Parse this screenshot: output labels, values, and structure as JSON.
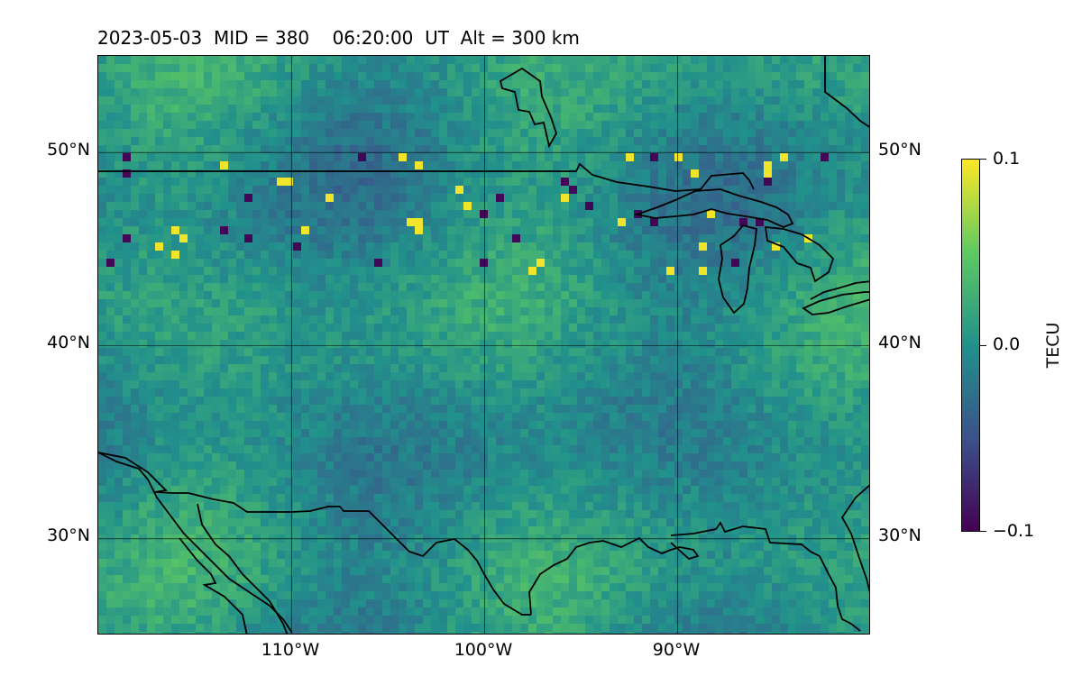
{
  "title": "2023-05-03  MID = 380    06:20:00  UT  Alt = 300 km",
  "map": {
    "projection": "plate-carree",
    "lon_range": [
      -120,
      -80
    ],
    "lat_range": [
      25,
      55
    ],
    "lat_ticks": [
      {
        "value": 50,
        "label": "50°N"
      },
      {
        "value": 40,
        "label": "40°N"
      },
      {
        "value": 30,
        "label": "30°N"
      }
    ],
    "lon_ticks": [
      {
        "value": -110,
        "label": "110°W"
      },
      {
        "value": -100,
        "label": "100°W"
      },
      {
        "value": -90,
        "label": "90°W"
      }
    ],
    "gridlines": true,
    "field_description": "gridded TEC perturbation map with scattered yellow/purple extremes along 45–50°N"
  },
  "colorbar": {
    "colormap": "viridis",
    "min": -0.1,
    "max": 0.1,
    "ticks": [
      {
        "value": 0.1,
        "label": "0.1"
      },
      {
        "value": 0.0,
        "label": "0.0"
      },
      {
        "value": -0.1,
        "label": "−0.1"
      }
    ],
    "label": "TECU",
    "colors": [
      "#440154",
      "#3b528b",
      "#21918c",
      "#5ec962",
      "#fde725"
    ]
  }
}
